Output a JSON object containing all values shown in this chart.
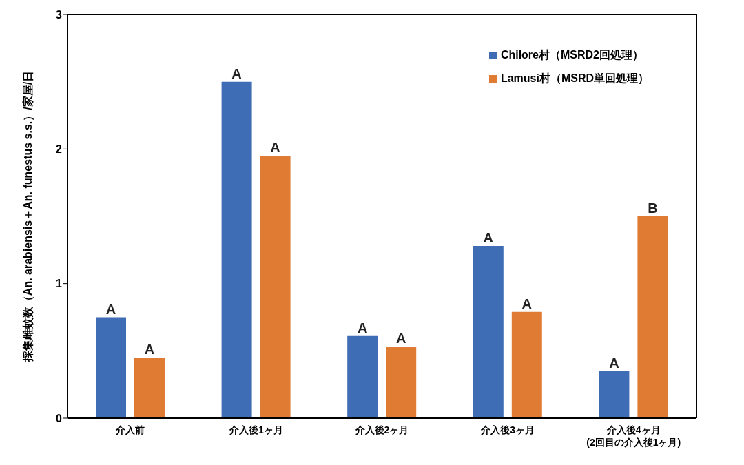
{
  "chart_data": {
    "type": "bar",
    "ylabel": "採集雌蚊数（An. arabiensis＋An. funestus s.s.）/家屋/日",
    "categories": [
      "介入前",
      "介入後1ヶ月",
      "介入後2ヶ月",
      "介入後3ヶ月",
      "介入後4ヶ月\n(2回目の介入後1ヶ月)"
    ],
    "series": [
      {
        "name": "Chilore村（MSRD2回処理）",
        "color": "#3f6db5",
        "values": [
          0.75,
          2.5,
          0.61,
          1.28,
          0.35
        ]
      },
      {
        "name": "Lamusi村（MSRD単回処理）",
        "color": "#e07b34",
        "values": [
          0.45,
          1.95,
          0.53,
          0.79,
          1.5
        ]
      }
    ],
    "ylim": [
      0,
      3
    ],
    "yticks": [
      0,
      1,
      2,
      3
    ],
    "grid": false,
    "legend": "top right",
    "annotations": [
      "A",
      "A",
      "A",
      "A",
      "A",
      "A",
      "A",
      "A",
      "A",
      "B"
    ]
  }
}
